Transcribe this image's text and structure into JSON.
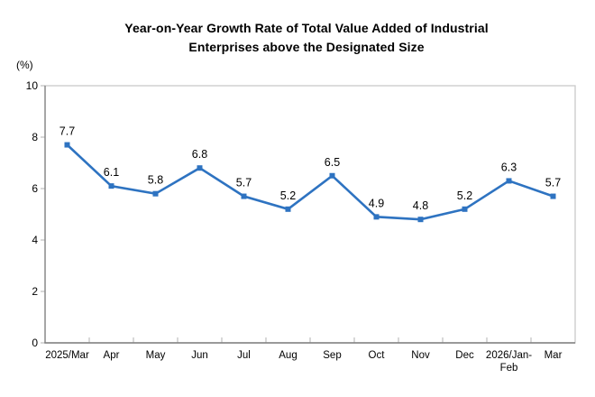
{
  "title_lines": [
    "Year-on-Year Growth Rate of Total Value Added of Industrial",
    "Enterprises above the Designated Size"
  ],
  "chart_data": {
    "type": "line",
    "title": "Year-on-Year Growth Rate of Total Value Added of Industrial Enterprises above the Designated Size",
    "ylabel": "(%)",
    "xlabel": "",
    "categories": [
      "2025/Mar",
      "Apr",
      "May",
      "Jun",
      "Jul",
      "Aug",
      "Sep",
      "Oct",
      "Nov",
      "Dec",
      "2026/Jan-Feb",
      "Mar"
    ],
    "values": [
      7.7,
      6.1,
      5.8,
      6.8,
      5.7,
      5.2,
      6.5,
      4.9,
      4.8,
      5.2,
      6.3,
      5.7
    ],
    "ylim": [
      0,
      10
    ],
    "yticks": [
      0,
      2,
      4,
      6,
      8,
      10
    ],
    "grid": false,
    "legend_position": "none",
    "marker": "square",
    "colors": {
      "line": "#2E73C1",
      "data_label": "#000000",
      "text": "#000000",
      "axis": "#7F7F7F",
      "tick": "#BFBFBF",
      "border": "#C9C9C9",
      "background": "#FFFFFF"
    }
  }
}
